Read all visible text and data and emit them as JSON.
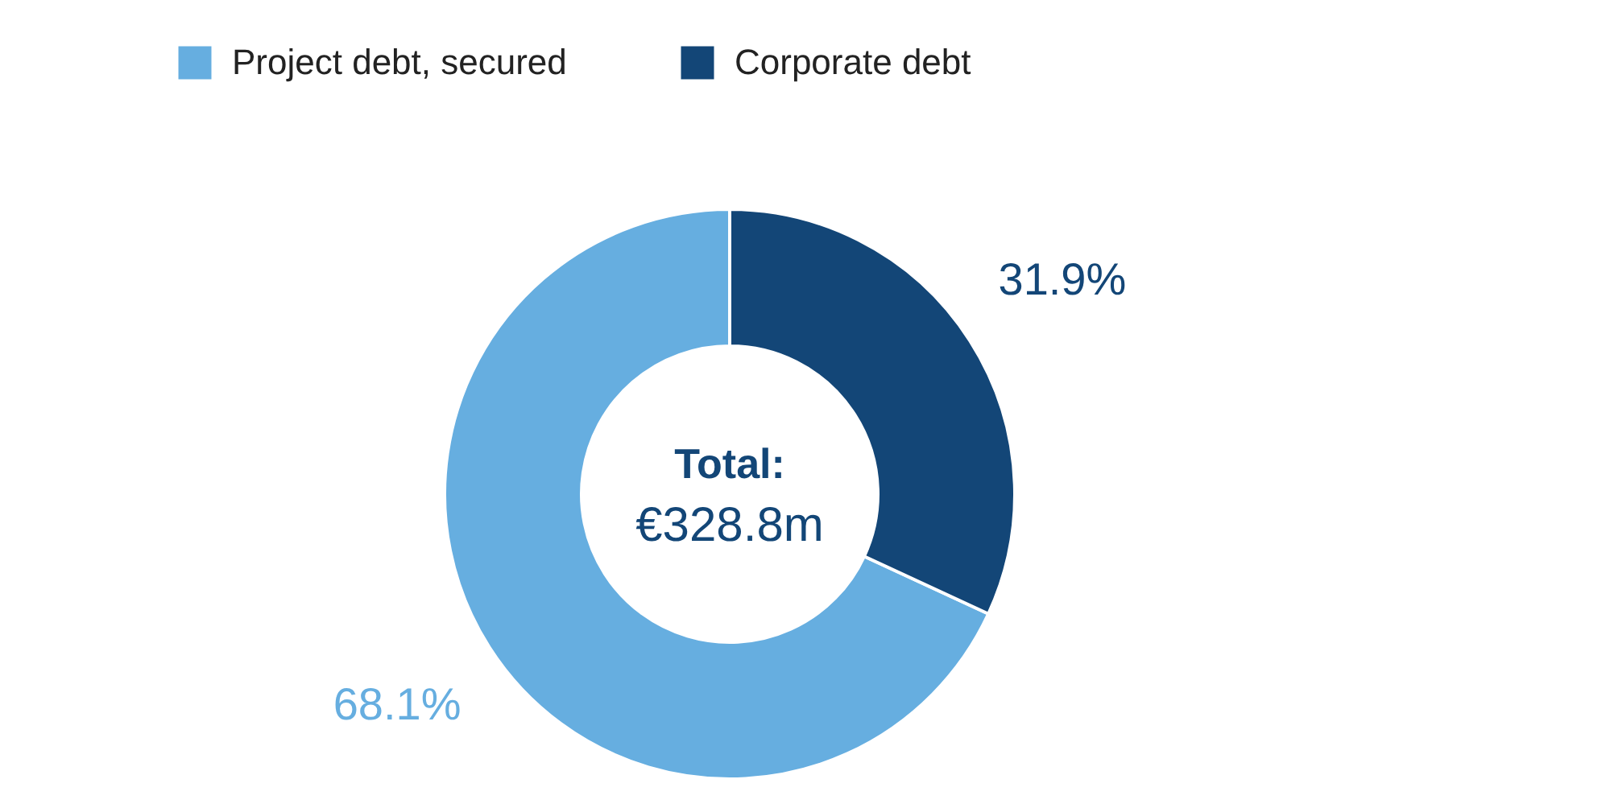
{
  "chart_data": {
    "type": "donut",
    "categories": [
      "Project debt, secured",
      "Corporate debt"
    ],
    "values": [
      68.1,
      31.9
    ],
    "colors": [
      "#66aee0",
      "#134677"
    ],
    "value_labels": [
      "68.1%",
      "31.9%"
    ],
    "annotations": [
      "Total:",
      "€328.8m"
    ],
    "legend": "top"
  }
}
